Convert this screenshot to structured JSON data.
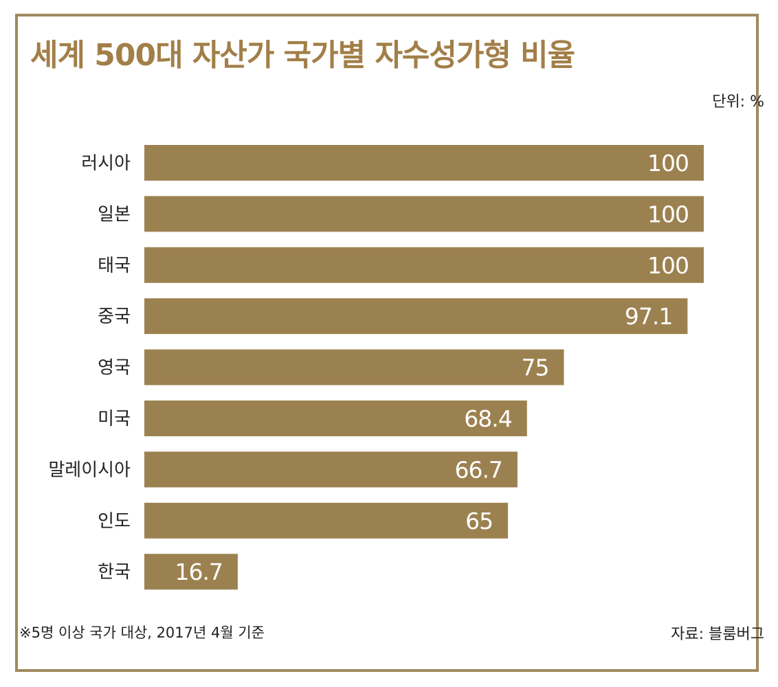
{
  "chart_data": {
    "type": "bar",
    "orientation": "horizontal",
    "title": "세계 500대 자산가 국가별 자수성가형 비율",
    "unit": "단위: %",
    "categories": [
      "러시아",
      "일본",
      "태국",
      "중국",
      "영국",
      "미국",
      "말레이시아",
      "인도",
      "한국"
    ],
    "values": [
      100,
      100,
      100,
      97.1,
      75,
      68.4,
      66.7,
      65,
      16.7
    ],
    "value_labels": [
      "100",
      "100",
      "100",
      "97.1",
      "75",
      "68.4",
      "66.7",
      "65",
      "16.7"
    ],
    "xlim": [
      0,
      100
    ],
    "grid": false,
    "legend": "none",
    "bar_color": "#9c8150",
    "value_label_color": "#ffffff",
    "title_color": "#a27f48",
    "frame_color": "#a08a5e"
  },
  "footer": {
    "note": "※5명 이상 국가 대상, 2017년 4월 기준",
    "source": "자료: 블룸버그"
  }
}
